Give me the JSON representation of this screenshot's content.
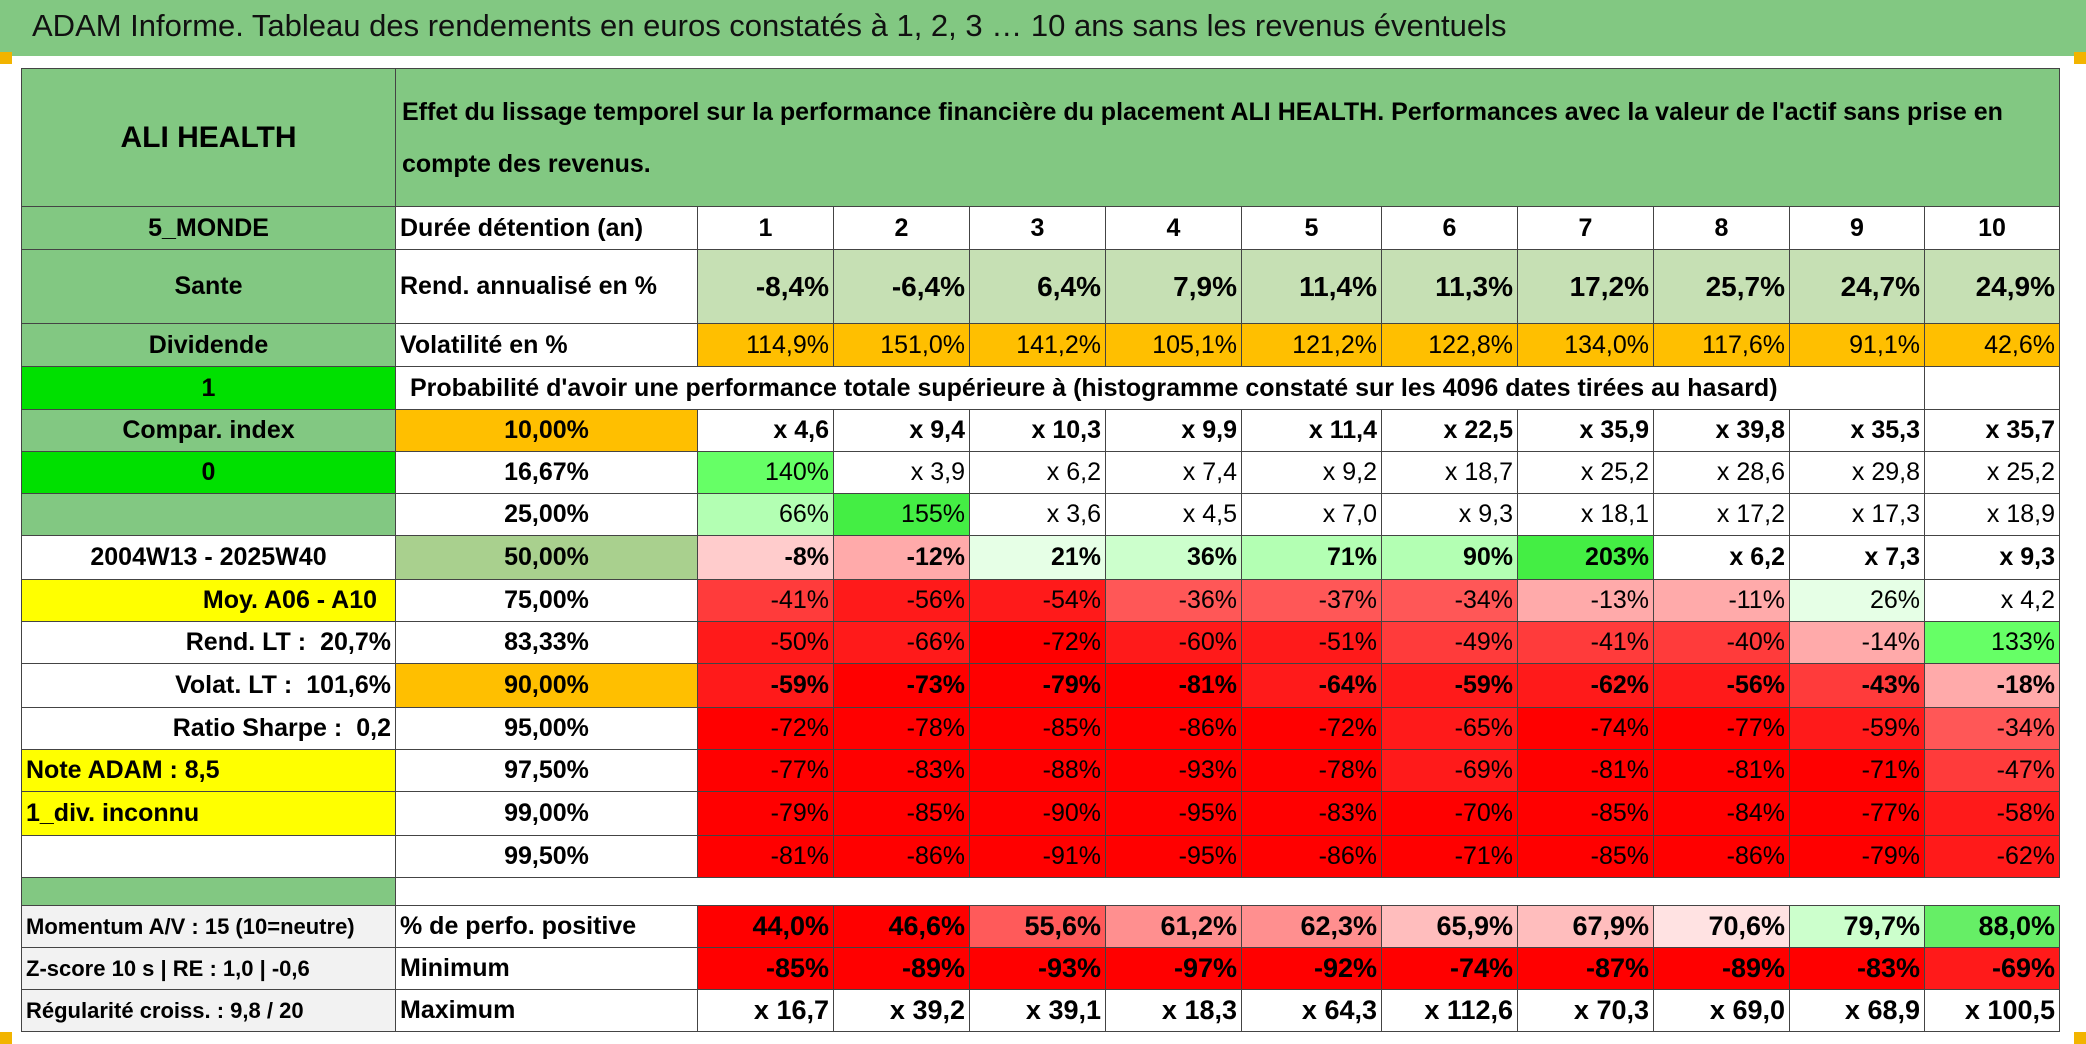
{
  "title": "ADAM Informe. Tableau des rendements en euros constatés à 1, 2, 3 … 10 ans sans les revenus éventuels",
  "asset": {
    "name": "ALI HEALTH",
    "description": "Effet du lissage temporel sur la performance financière du placement ALI HEALTH. Performances avec la valeur de l'actif sans prise en compte des revenus.",
    "region": "5_MONDE",
    "sector": "Sante",
    "type": "Dividende",
    "indicator_1": "1",
    "compar_index_label": "Compar. index",
    "indicator_0": "0",
    "period": "2004W13 - 2025W40",
    "moy_label": "Moy. A06 - A10",
    "rend_lt_label": "Rend. LT :",
    "rend_lt_value": "20,7%",
    "volat_lt_label": "Volat. LT :",
    "volat_lt_value": "101,6%",
    "sharpe_label": "Ratio Sharpe :",
    "sharpe_value": "0,2",
    "note_adam": "Note ADAM : 8,5",
    "div_info": "1_div. inconnu",
    "momentum": "Momentum A/V : 15 (10=neutre)",
    "zscore": "Z-score 10 s | RE : 1,0 | -0,6",
    "regularite": "Régularité croiss. : 9,8 / 20"
  },
  "header": {
    "duration_label": "Durée détention (an)",
    "years": [
      "1",
      "2",
      "3",
      "4",
      "5",
      "6",
      "7",
      "8",
      "9",
      "10"
    ]
  },
  "rows": {
    "rend_label": "Rend. annualisé en %",
    "rend": [
      "-8,4%",
      "-6,4%",
      "6,4%",
      "7,9%",
      "11,4%",
      "11,3%",
      "17,2%",
      "25,7%",
      "24,7%",
      "24,9%"
    ],
    "vol_label": "Volatilité en %",
    "vol": [
      "114,9%",
      "151,0%",
      "141,2%",
      "105,1%",
      "121,2%",
      "122,8%",
      "134,0%",
      "117,6%",
      "91,1%",
      "42,6%"
    ],
    "prob_label": "Probabilité d'avoir une performance totale supérieure à (histogramme constaté sur les 4096 dates tirées au hasard)"
  },
  "quantiles": [
    {
      "p": "10,00%",
      "v": [
        "x 4,6",
        "x 9,4",
        "x 10,3",
        "x 9,9",
        "x 11,4",
        "x 22,5",
        "x 35,9",
        "x 39,8",
        "x 35,3",
        "x 35,7"
      ]
    },
    {
      "p": "16,67%",
      "v": [
        "140%",
        "x 3,9",
        "x 6,2",
        "x 7,4",
        "x 9,2",
        "x 18,7",
        "x 25,2",
        "x 28,6",
        "x 29,8",
        "x 25,2"
      ]
    },
    {
      "p": "25,00%",
      "v": [
        "66%",
        "155%",
        "x 3,6",
        "x 4,5",
        "x 7,0",
        "x 9,3",
        "x 18,1",
        "x 17,2",
        "x 17,3",
        "x 18,9"
      ]
    },
    {
      "p": "50,00%",
      "v": [
        "-8%",
        "-12%",
        "21%",
        "36%",
        "71%",
        "90%",
        "203%",
        "x 6,2",
        "x 7,3",
        "x 9,3"
      ]
    },
    {
      "p": "75,00%",
      "v": [
        "-41%",
        "-56%",
        "-54%",
        "-36%",
        "-37%",
        "-34%",
        "-13%",
        "-11%",
        "26%",
        "x 4,2"
      ]
    },
    {
      "p": "83,33%",
      "v": [
        "-50%",
        "-66%",
        "-72%",
        "-60%",
        "-51%",
        "-49%",
        "-41%",
        "-40%",
        "-14%",
        "133%"
      ]
    },
    {
      "p": "90,00%",
      "v": [
        "-59%",
        "-73%",
        "-79%",
        "-81%",
        "-64%",
        "-59%",
        "-62%",
        "-56%",
        "-43%",
        "-18%"
      ]
    },
    {
      "p": "95,00%",
      "v": [
        "-72%",
        "-78%",
        "-85%",
        "-86%",
        "-72%",
        "-65%",
        "-74%",
        "-77%",
        "-59%",
        "-34%"
      ]
    },
    {
      "p": "97,50%",
      "v": [
        "-77%",
        "-83%",
        "-88%",
        "-93%",
        "-78%",
        "-69%",
        "-81%",
        "-81%",
        "-71%",
        "-47%"
      ]
    },
    {
      "p": "99,00%",
      "v": [
        "-79%",
        "-85%",
        "-90%",
        "-95%",
        "-83%",
        "-70%",
        "-85%",
        "-84%",
        "-77%",
        "-58%"
      ]
    },
    {
      "p": "99,50%",
      "v": [
        "-81%",
        "-86%",
        "-91%",
        "-95%",
        "-86%",
        "-71%",
        "-85%",
        "-86%",
        "-79%",
        "-62%"
      ]
    }
  ],
  "summary": [
    {
      "label": "% de perfo. positive",
      "v": [
        "44,0%",
        "46,6%",
        "55,6%",
        "61,2%",
        "62,3%",
        "65,9%",
        "67,9%",
        "70,6%",
        "79,7%",
        "88,0%"
      ]
    },
    {
      "label": "Minimum",
      "v": [
        "-85%",
        "-89%",
        "-93%",
        "-97%",
        "-92%",
        "-74%",
        "-87%",
        "-89%",
        "-83%",
        "-69%"
      ]
    },
    {
      "label": "Maximum",
      "v": [
        "x 16,7",
        "x 39,2",
        "x 39,1",
        "x 18,3",
        "x 64,3",
        "x 112,6",
        "x 70,3",
        "x 69,0",
        "x 68,9",
        "x 100,5"
      ]
    }
  ],
  "colors": {
    "header_green": "#82c882",
    "bright_green": "#00e000",
    "yellow": "#ffff00",
    "orange": "#ffbf00",
    "light_green": "#c6e0b4",
    "red": "#ff0000"
  }
}
